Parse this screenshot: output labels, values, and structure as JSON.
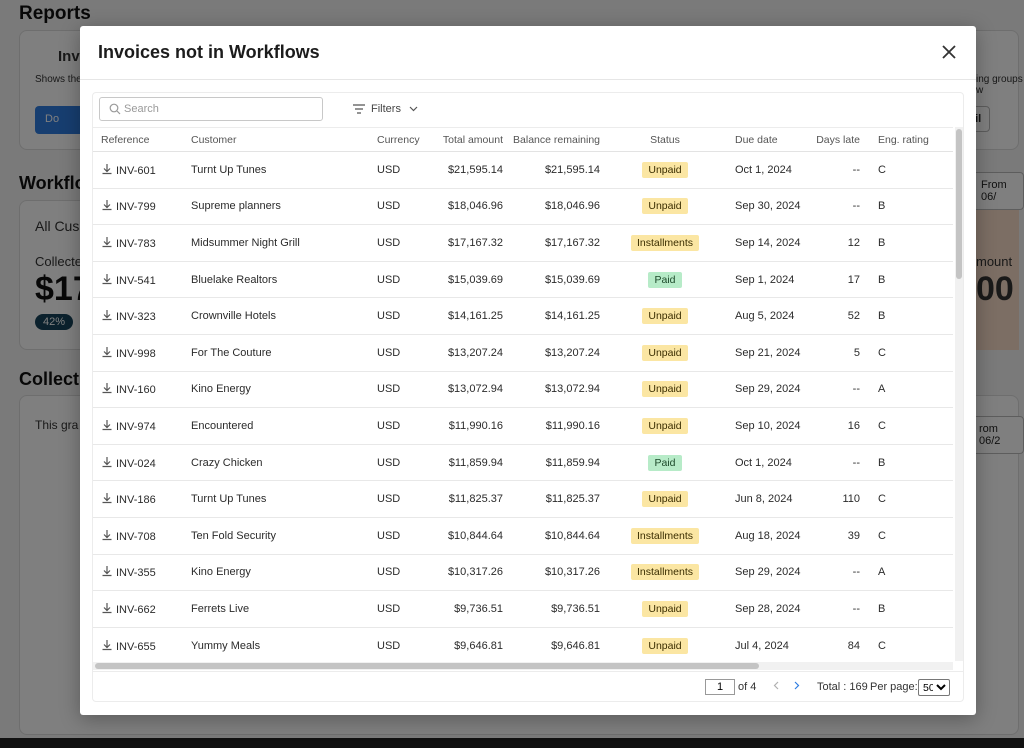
{
  "background": {
    "page_title": "Reports",
    "card1_title": "Inv",
    "card1_desc": "Shows the",
    "card1_button": "Do",
    "card1_right_button": "ail",
    "card1_right_text": "ing groups w",
    "section2_title": "Workflo",
    "section2_card_title": "All Cus",
    "section2_collected": "Collecte",
    "section2_big_value": "$17",
    "section2_pill": "42%",
    "section2_right_amount_label": "mount",
    "section2_right_big": "00",
    "section2_from_button": "From 06/",
    "section3_title": "Collect",
    "section3_text": "This gra",
    "section3_from_button": "rom 06/2"
  },
  "modal": {
    "title": "Invoices not in Workflows",
    "close_icon": "close-icon"
  },
  "search": {
    "placeholder": "Search",
    "value": ""
  },
  "filters": {
    "label": "Filters"
  },
  "table": {
    "columns": {
      "reference": "Reference",
      "customer": "Customer",
      "currency": "Currency",
      "total": "Total amount",
      "balance": "Balance remaining",
      "status": "Status",
      "due": "Due date",
      "late": "Days late",
      "rating": "Eng. rating"
    },
    "rows": [
      {
        "ref": "INV-601",
        "customer": "Turnt Up Tunes",
        "currency": "USD",
        "total": "$21,595.14",
        "balance": "$21,595.14",
        "status": "Unpaid",
        "status_kind": "unpaid",
        "due": "Oct 1, 2024",
        "late": "--",
        "rating": "C"
      },
      {
        "ref": "INV-799",
        "customer": "Supreme planners",
        "currency": "USD",
        "total": "$18,046.96",
        "balance": "$18,046.96",
        "status": "Unpaid",
        "status_kind": "unpaid",
        "due": "Sep 30, 2024",
        "late": "--",
        "rating": "B"
      },
      {
        "ref": "INV-783",
        "customer": "Midsummer Night Grill",
        "currency": "USD",
        "total": "$17,167.32",
        "balance": "$17,167.32",
        "status": "Installments",
        "status_kind": "installments",
        "due": "Sep 14, 2024",
        "late": "12",
        "rating": "B"
      },
      {
        "ref": "INV-541",
        "customer": "Bluelake Realtors",
        "currency": "USD",
        "total": "$15,039.69",
        "balance": "$15,039.69",
        "status": "Paid",
        "status_kind": "paid",
        "due": "Sep 1, 2024",
        "late": "17",
        "rating": "B"
      },
      {
        "ref": "INV-323",
        "customer": "Crownville Hotels",
        "currency": "USD",
        "total": "$14,161.25",
        "balance": "$14,161.25",
        "status": "Unpaid",
        "status_kind": "unpaid",
        "due": "Aug 5, 2024",
        "late": "52",
        "rating": "B"
      },
      {
        "ref": "INV-998",
        "customer": "For The Couture",
        "currency": "USD",
        "total": "$13,207.24",
        "balance": "$13,207.24",
        "status": "Unpaid",
        "status_kind": "unpaid",
        "due": "Sep 21, 2024",
        "late": "5",
        "rating": "C"
      },
      {
        "ref": "INV-160",
        "customer": "Kino Energy",
        "currency": "USD",
        "total": "$13,072.94",
        "balance": "$13,072.94",
        "status": "Unpaid",
        "status_kind": "unpaid",
        "due": "Sep 29, 2024",
        "late": "--",
        "rating": "A"
      },
      {
        "ref": "INV-974",
        "customer": "Encountered",
        "currency": "USD",
        "total": "$11,990.16",
        "balance": "$11,990.16",
        "status": "Unpaid",
        "status_kind": "unpaid",
        "due": "Sep 10, 2024",
        "late": "16",
        "rating": "C"
      },
      {
        "ref": "INV-024",
        "customer": "Crazy Chicken",
        "currency": "USD",
        "total": "$11,859.94",
        "balance": "$11,859.94",
        "status": "Paid",
        "status_kind": "paid",
        "due": "Oct 1, 2024",
        "late": "--",
        "rating": "B"
      },
      {
        "ref": "INV-186",
        "customer": "Turnt Up Tunes",
        "currency": "USD",
        "total": "$11,825.37",
        "balance": "$11,825.37",
        "status": "Unpaid",
        "status_kind": "unpaid",
        "due": "Jun 8, 2024",
        "late": "110",
        "rating": "C"
      },
      {
        "ref": "INV-708",
        "customer": "Ten Fold Security",
        "currency": "USD",
        "total": "$10,844.64",
        "balance": "$10,844.64",
        "status": "Installments",
        "status_kind": "installments",
        "due": "Aug 18, 2024",
        "late": "39",
        "rating": "C"
      },
      {
        "ref": "INV-355",
        "customer": "Kino Energy",
        "currency": "USD",
        "total": "$10,317.26",
        "balance": "$10,317.26",
        "status": "Installments",
        "status_kind": "installments",
        "due": "Sep 29, 2024",
        "late": "--",
        "rating": "A"
      },
      {
        "ref": "INV-662",
        "customer": "Ferrets Live",
        "currency": "USD",
        "total": "$9,736.51",
        "balance": "$9,736.51",
        "status": "Unpaid",
        "status_kind": "unpaid",
        "due": "Sep 28, 2024",
        "late": "--",
        "rating": "B"
      },
      {
        "ref": "INV-655",
        "customer": "Yummy Meals",
        "currency": "USD",
        "total": "$9,646.81",
        "balance": "$9,646.81",
        "status": "Unpaid",
        "status_kind": "unpaid",
        "due": "Jul 4, 2024",
        "late": "84",
        "rating": "C"
      }
    ]
  },
  "pagination": {
    "current_page": "1",
    "of_label": "of 4",
    "prev_icon": "chevron-left-icon",
    "next_icon": "chevron-right-icon",
    "total_label": "Total : 169",
    "per_page_label": "Per page:",
    "per_page_value": "50"
  },
  "colors": {
    "accent": "#2f7de1",
    "unpaid_badge": "#fbe6a3",
    "paid_badge": "#b7ebc8"
  }
}
